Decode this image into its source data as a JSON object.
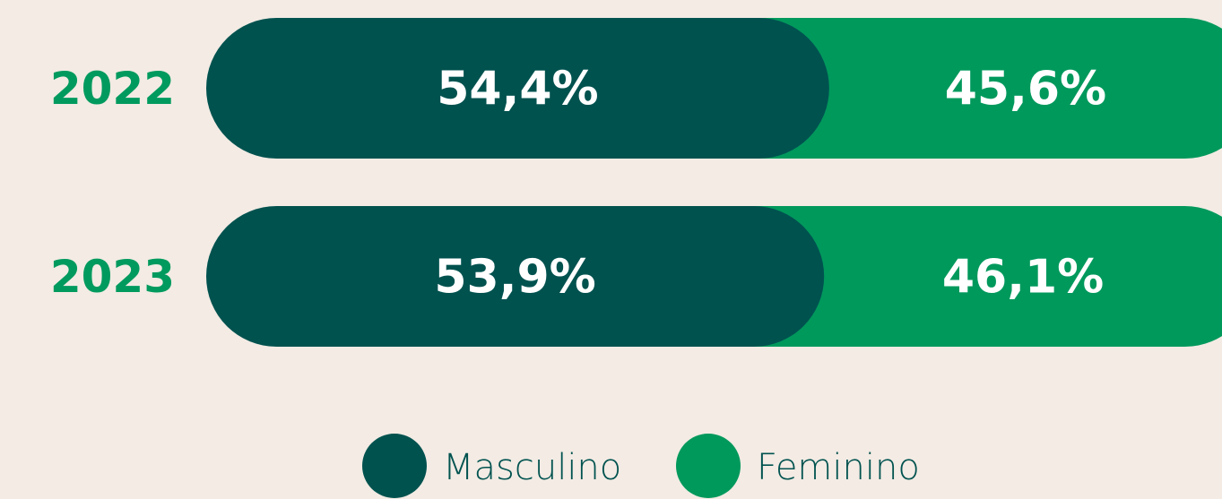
{
  "chart_data": {
    "type": "stacked_bar_horizontal",
    "categories": [
      "2022",
      "2023"
    ],
    "series": [
      {
        "name": "Masculino",
        "color": "#00524f",
        "values": [
          54.4,
          53.9
        ],
        "value_labels": [
          "54,4%",
          "53,9%"
        ]
      },
      {
        "name": "Feminino",
        "color": "#00995c",
        "values": [
          45.6,
          46.1
        ],
        "value_labels": [
          "45,6%",
          "46,1%"
        ]
      }
    ]
  }
}
